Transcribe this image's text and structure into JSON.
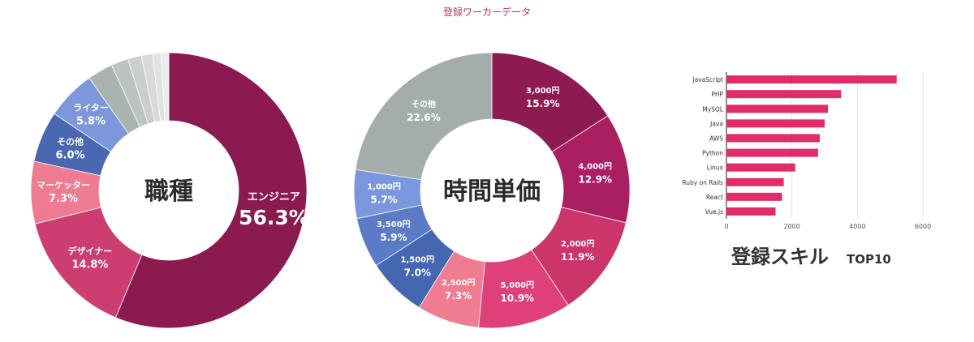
{
  "page": {
    "title": "登録ワーカーデータ"
  },
  "chart_data": [
    {
      "type": "pie",
      "title": "職種",
      "donut": true,
      "slices": [
        {
          "name": "エンジニア",
          "value": 56.3,
          "label": "56.3%",
          "color": "#8b1a50"
        },
        {
          "name": "デザイナー",
          "value": 14.8,
          "label": "14.8%",
          "color": "#cc3e72"
        },
        {
          "name": "マーケッター",
          "value": 7.3,
          "label": "7.3%",
          "color": "#ee7b91"
        },
        {
          "name": "その他",
          "value": 6.0,
          "label": "6.0%",
          "color": "#4a68b1"
        },
        {
          "name": "ライター",
          "value": 5.8,
          "label": "5.8%",
          "color": "#7c97dc"
        },
        {
          "name": "",
          "value": 3.0,
          "label": "",
          "color": "#aab3b2"
        },
        {
          "name": "",
          "value": 2.0,
          "label": "",
          "color": "#bcc3c2"
        },
        {
          "name": "",
          "value": 1.6,
          "label": "",
          "color": "#cacfce"
        },
        {
          "name": "",
          "value": 1.3,
          "label": "",
          "color": "#d6dad9"
        },
        {
          "name": "",
          "value": 1.0,
          "label": "",
          "color": "#e0e3e2"
        },
        {
          "name": "",
          "value": 0.9,
          "label": "",
          "color": "#eaeceb"
        }
      ]
    },
    {
      "type": "pie",
      "title": "時間単価",
      "donut": true,
      "slices": [
        {
          "name": "3,000円",
          "value": 15.9,
          "label": "15.9%",
          "color": "#8d1a51"
        },
        {
          "name": "4,000円",
          "value": 12.9,
          "label": "12.9%",
          "color": "#aa1e62"
        },
        {
          "name": "2,000円",
          "value": 11.9,
          "label": "11.9%",
          "color": "#cb356a"
        },
        {
          "name": "5,000円",
          "value": 10.9,
          "label": "10.9%",
          "color": "#e0407a"
        },
        {
          "name": "2,500円",
          "value": 7.3,
          "label": "7.3%",
          "color": "#f07c91"
        },
        {
          "name": "1,500円",
          "value": 7.0,
          "label": "7.0%",
          "color": "#4566b0"
        },
        {
          "name": "3,500円",
          "value": 5.9,
          "label": "5.9%",
          "color": "#5b7bc7"
        },
        {
          "name": "1,000円",
          "value": 5.7,
          "label": "5.7%",
          "color": "#7a96dd"
        },
        {
          "name": "その他",
          "value": 22.6,
          "label": "22.6%",
          "color": "#a4adac"
        }
      ]
    },
    {
      "type": "bar",
      "orientation": "horizontal",
      "title": "登録スキル",
      "subtitle": "TOP10",
      "categories": [
        "JavaScript",
        "PHP",
        "MySQL",
        "Java",
        "AWS",
        "Python",
        "Linux",
        "Ruby on Rails",
        "React",
        "Vue.js"
      ],
      "values": [
        5200,
        3500,
        3100,
        3000,
        2850,
        2800,
        2100,
        1750,
        1700,
        1500
      ],
      "xlim": [
        0,
        6000
      ],
      "xticks": [
        0,
        2000,
        4000,
        6000
      ],
      "grid": true,
      "color": "#e02c69"
    }
  ]
}
